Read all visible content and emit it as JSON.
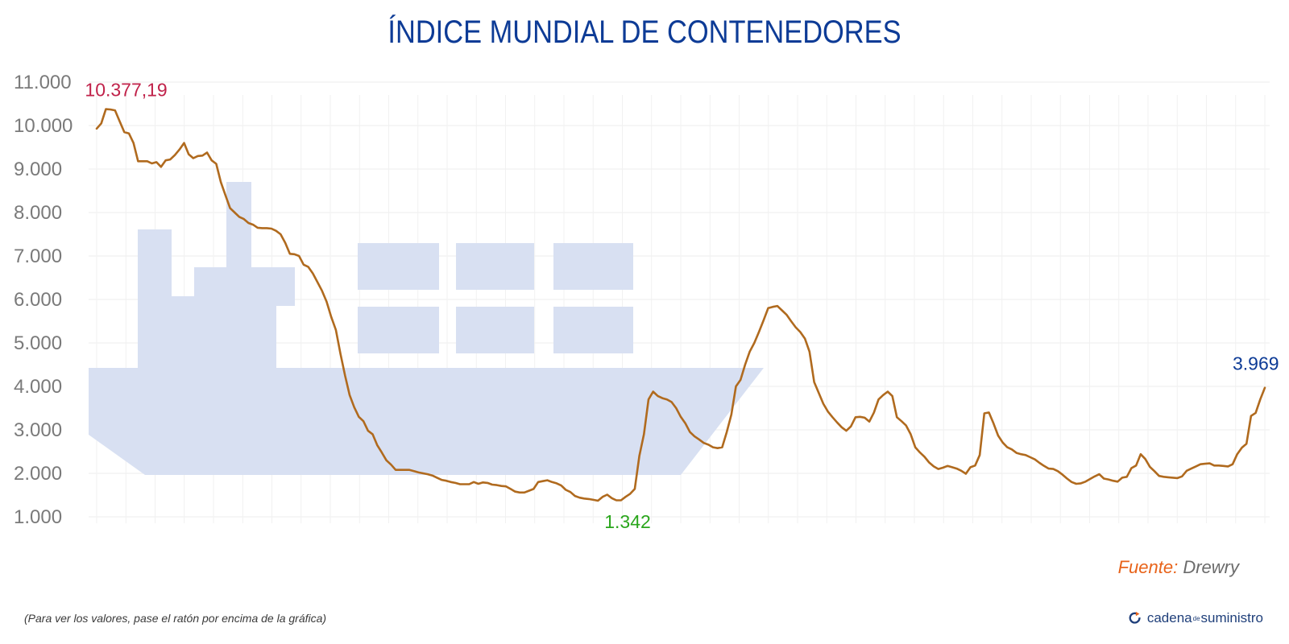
{
  "chart_data": {
    "type": "line",
    "title": "ÍNDICE MUNDIAL DE CONTENEDORES",
    "ylim": [
      1000,
      11000
    ],
    "yticks": [
      1000,
      2000,
      3000,
      4000,
      5000,
      6000,
      7000,
      8000,
      9000,
      10000,
      11000
    ],
    "ytick_labels": [
      "1.000",
      "2.000",
      "3.000",
      "4.000",
      "5.000",
      "6.000",
      "7.000",
      "8.000",
      "9.000",
      "10.000",
      "11.000"
    ],
    "grid": true,
    "annotations": {
      "max": {
        "label": "10.377,19",
        "color": "#c0224a"
      },
      "min": {
        "label": "1.342",
        "color": "#2aa61c"
      },
      "last": {
        "label": "3.969",
        "color": "#0d3b96"
      }
    },
    "series": [
      {
        "color": "#b06a1e",
        "values": [
          9930,
          10050,
          10377,
          10370,
          10350,
          10100,
          9850,
          9820,
          9600,
          9180,
          9180,
          9180,
          9130,
          9160,
          9050,
          9200,
          9220,
          9320,
          9450,
          9600,
          9340,
          9250,
          9300,
          9310,
          9380,
          9200,
          9120,
          8700,
          8400,
          8100,
          8000,
          7900,
          7850,
          7760,
          7720,
          7650,
          7640,
          7640,
          7630,
          7580,
          7500,
          7300,
          7050,
          7040,
          7000,
          6800,
          6750,
          6600,
          6400,
          6200,
          5950,
          5600,
          5300,
          4750,
          4250,
          3800,
          3520,
          3300,
          3200,
          2980,
          2900,
          2650,
          2480,
          2300,
          2200,
          2080,
          2080,
          2080,
          2080,
          2050,
          2020,
          2000,
          1980,
          1950,
          1900,
          1850,
          1830,
          1800,
          1780,
          1750,
          1750,
          1750,
          1800,
          1760,
          1790,
          1780,
          1740,
          1730,
          1710,
          1700,
          1640,
          1580,
          1560,
          1560,
          1600,
          1640,
          1800,
          1820,
          1840,
          1800,
          1770,
          1720,
          1620,
          1570,
          1480,
          1440,
          1420,
          1410,
          1390,
          1370,
          1460,
          1510,
          1430,
          1380,
          1380,
          1460,
          1530,
          1640,
          2400,
          2900,
          3700,
          3880,
          3780,
          3730,
          3700,
          3640,
          3500,
          3300,
          3150,
          2950,
          2850,
          2780,
          2700,
          2660,
          2600,
          2580,
          2600,
          2950,
          3350,
          4000,
          4150,
          4500,
          4800,
          5000,
          5250,
          5520,
          5800,
          5830,
          5850,
          5750,
          5650,
          5500,
          5360,
          5250,
          5100,
          4800,
          4100,
          3850,
          3600,
          3420,
          3290,
          3170,
          3060,
          2980,
          3080,
          3290,
          3300,
          3280,
          3190,
          3400,
          3700,
          3800,
          3880,
          3780,
          3290,
          3200,
          3100,
          2900,
          2600,
          2480,
          2380,
          2250,
          2160,
          2100,
          2130,
          2170,
          2140,
          2110,
          2060,
          1990,
          2140,
          2180,
          2420,
          3380,
          3400,
          3150,
          2870,
          2710,
          2600,
          2550,
          2470,
          2440,
          2420,
          2370,
          2320,
          2240,
          2170,
          2110,
          2100,
          2050,
          1970,
          1880,
          1800,
          1760,
          1770,
          1810,
          1870,
          1930,
          1980,
          1880,
          1860,
          1830,
          1810,
          1900,
          1920,
          2120,
          2180,
          2440,
          2330,
          2150,
          2050,
          1940,
          1920,
          1910,
          1900,
          1890,
          1930,
          2060,
          2110,
          2160,
          2210,
          2220,
          2230,
          2180,
          2180,
          2170,
          2160,
          2210,
          2440,
          2590,
          2680,
          3320,
          3390,
          3700,
          3969
        ]
      }
    ]
  },
  "source": {
    "label": "Fuente:",
    "name": "Drewry"
  },
  "hint": "(Para ver los valores, pase el ratón por encima de la gráfica)",
  "brand": {
    "part1": "cadena",
    "part2": "de",
    "part3": "suministro"
  }
}
